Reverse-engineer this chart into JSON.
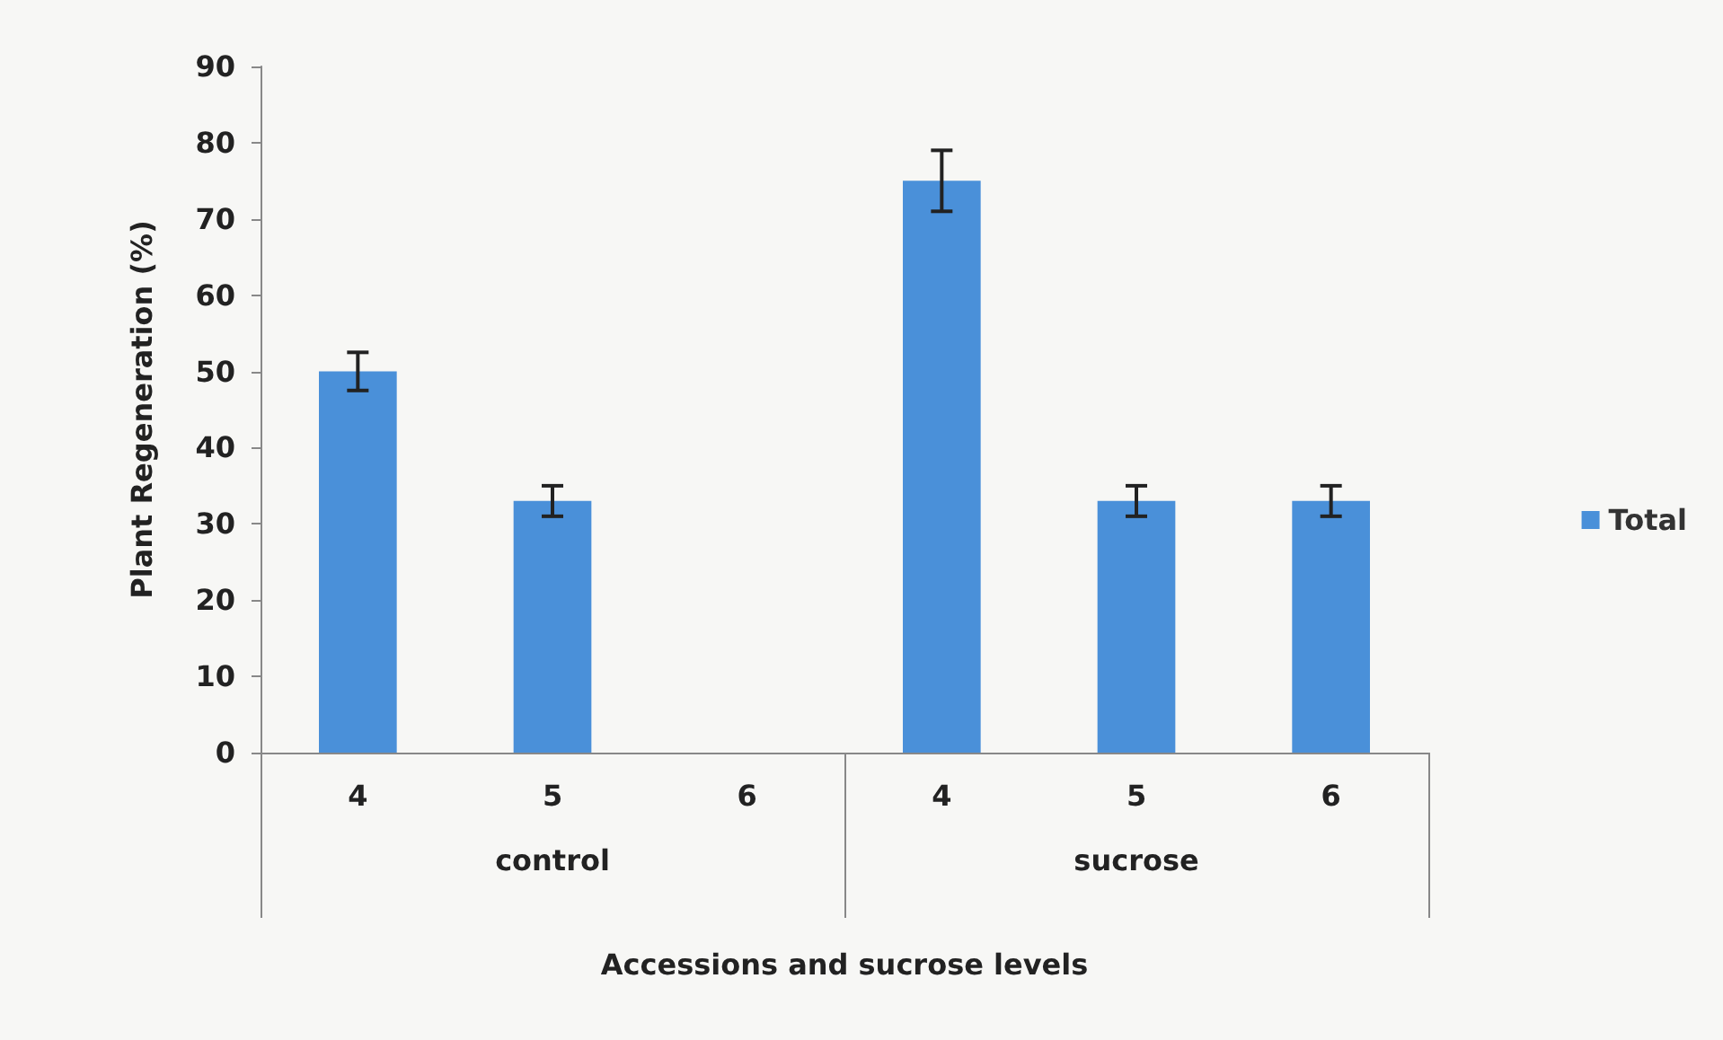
{
  "chart_data": {
    "type": "bar",
    "xlabel": "Accessions and sucrose levels",
    "ylabel": "Plant Regeneration (%)",
    "categories": [
      "4",
      "5",
      "6",
      "4",
      "5",
      "6"
    ],
    "series": [
      {
        "name": "Total",
        "color": "#4a90d9",
        "values": [
          50,
          33,
          0,
          75,
          33,
          33
        ],
        "errors": [
          2.5,
          2,
          null,
          4,
          2,
          2
        ]
      }
    ],
    "annotations": [
      "control",
      "sucrose"
    ],
    "ylim": [
      0,
      90
    ],
    "yticks": [
      0,
      10,
      20,
      30,
      40,
      50,
      60,
      70,
      80,
      90
    ],
    "legend": "right"
  }
}
